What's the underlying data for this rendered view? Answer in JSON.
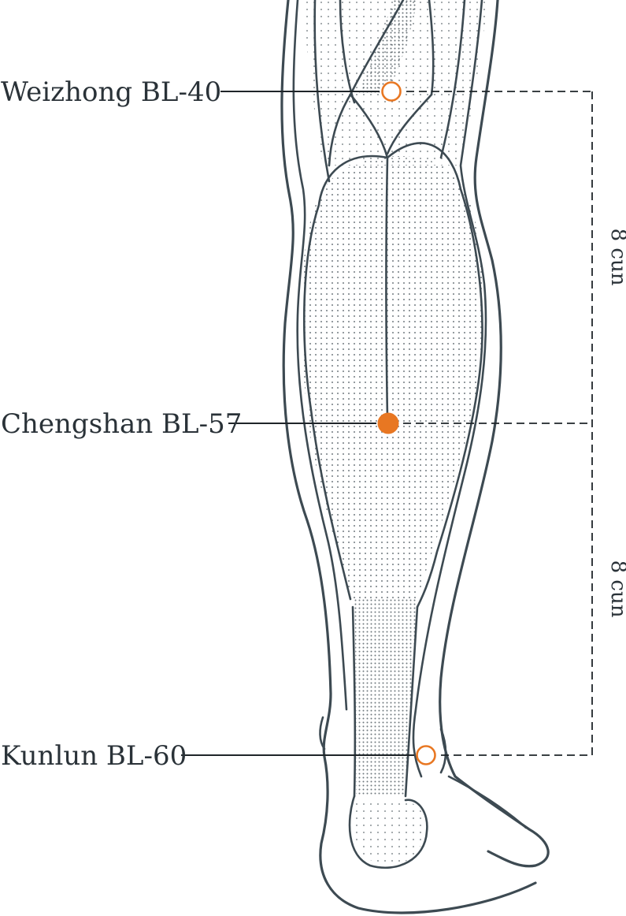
{
  "points": [
    {
      "name": "Weizhong BL-40",
      "marker": "open"
    },
    {
      "name": "Chengshan BL-57",
      "marker": "filled"
    },
    {
      "name": "Kunlun BL-60",
      "marker": "open"
    }
  ],
  "measurements": [
    {
      "label": "8 cun"
    },
    {
      "label": "8 cun"
    }
  ],
  "colors": {
    "point": "#e87722",
    "line": "#3d4a52",
    "stipple": "#4a555c"
  }
}
